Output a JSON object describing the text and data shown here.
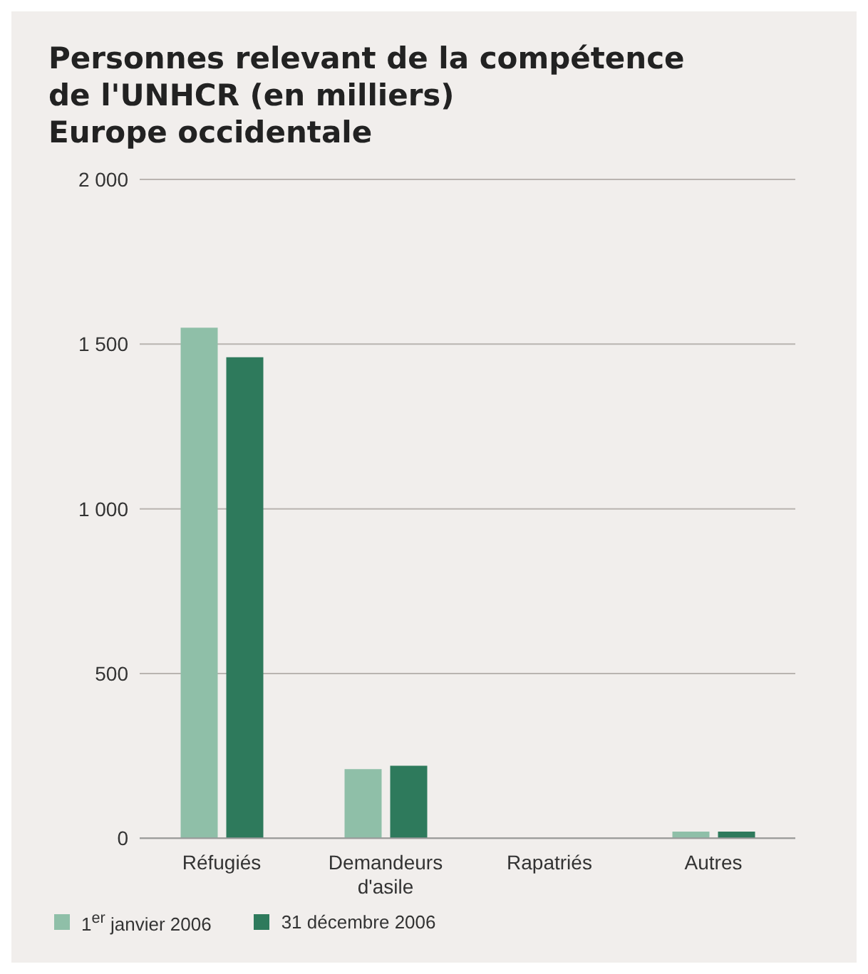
{
  "chart_data": {
    "type": "bar",
    "title": "Personnes relevant de la compétence de l'UNHCR (en milliers)",
    "subtitle": "Europe occidentale",
    "categories": [
      "Réfugiés",
      "Demandeurs d'asile",
      "Rapatriés",
      "Autres"
    ],
    "series": [
      {
        "name": "1$^{er}$ janvier 2006",
        "color": "#8fbfa8",
        "values": [
          1550,
          210,
          0,
          20
        ]
      },
      {
        "name": "31 décembre 2006",
        "color": "#2e7a5c",
        "values": [
          1460,
          220,
          0,
          20
        ]
      }
    ],
    "ylim": [
      0,
      2000
    ],
    "yticks": [
      0,
      500,
      {
        "value": 1000,
        "label": "1 000"
      },
      {
        "value": 1500,
        "label": "1 500"
      },
      {
        "value": 2000,
        "label": "2 000"
      }
    ],
    "grid": "y",
    "legend": "bottom left"
  }
}
